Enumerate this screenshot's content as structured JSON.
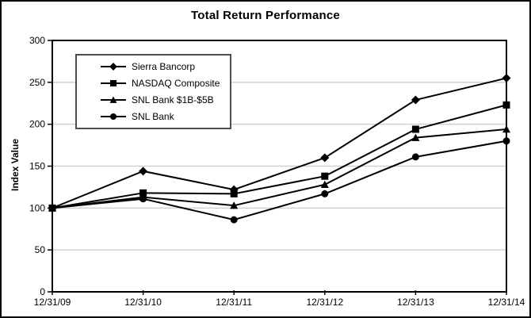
{
  "chart_data": {
    "type": "line",
    "title": "Total Return Performance",
    "xlabel": "",
    "ylabel": "Index Value",
    "categories": [
      "12/31/09",
      "12/31/10",
      "12/31/11",
      "12/31/12",
      "12/31/13",
      "12/31/14"
    ],
    "yticks": [
      0,
      50,
      100,
      150,
      200,
      250,
      300
    ],
    "ylim": [
      0,
      300
    ],
    "grid": true,
    "legend_position": "upper-left-inside",
    "colors": {
      "line": "#000000",
      "gridline": "#d0d0d0",
      "plot_border": "#000000",
      "legend_border": "#4d4d4d",
      "background": "#ffffff"
    },
    "series": [
      {
        "name": "Sierra Bancorp",
        "marker": "diamond",
        "values": [
          100,
          144,
          122,
          160,
          229,
          255
        ]
      },
      {
        "name": "NASDAQ Composite",
        "marker": "square",
        "values": [
          100,
          118,
          117,
          138,
          194,
          223
        ]
      },
      {
        "name": "SNL Bank $1B-$5B",
        "marker": "triangle",
        "values": [
          100,
          113,
          103,
          128,
          184,
          194
        ]
      },
      {
        "name": "SNL Bank",
        "marker": "circle",
        "values": [
          100,
          111,
          86,
          117,
          161,
          180
        ]
      }
    ]
  }
}
